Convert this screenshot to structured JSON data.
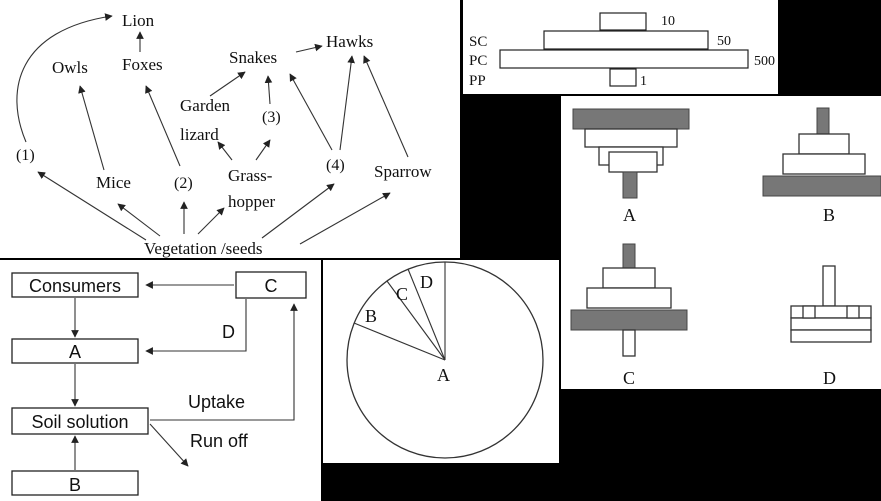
{
  "food_web": {
    "nodes": {
      "lion": "Lion",
      "owls": "Owls",
      "foxes": "Foxes",
      "snakes": "Snakes",
      "hawks": "Hawks",
      "garden_lizard_1": "Garden",
      "garden_lizard_2": "lizard",
      "mice": "Mice",
      "grasshopper_1": "Grass-",
      "grasshopper_2": "hopper",
      "sparrow": "Sparrow",
      "vegetation": "Vegetation /seeds"
    },
    "markers": [
      "(1)",
      "(2)",
      "(3)",
      "(4)"
    ]
  },
  "pyramid_numbers": {
    "levels": [
      {
        "label": "",
        "value": 10
      },
      {
        "label": "SC",
        "value": 50
      },
      {
        "label": "PC",
        "value": 500
      },
      {
        "label": "PP",
        "value": 1
      }
    ]
  },
  "nutrient_cycle": {
    "consumers": "Consumers",
    "a": "A",
    "soil_solution": "Soil solution",
    "b": "B",
    "c": "C",
    "d": "D",
    "uptake": "Uptake",
    "run_off": "Run off"
  },
  "pie": {
    "labels": {
      "a": "A",
      "b": "B",
      "c": "C",
      "d": "D"
    }
  },
  "pyramid_options": {
    "labels": [
      "A",
      "B",
      "C",
      "D"
    ]
  }
}
